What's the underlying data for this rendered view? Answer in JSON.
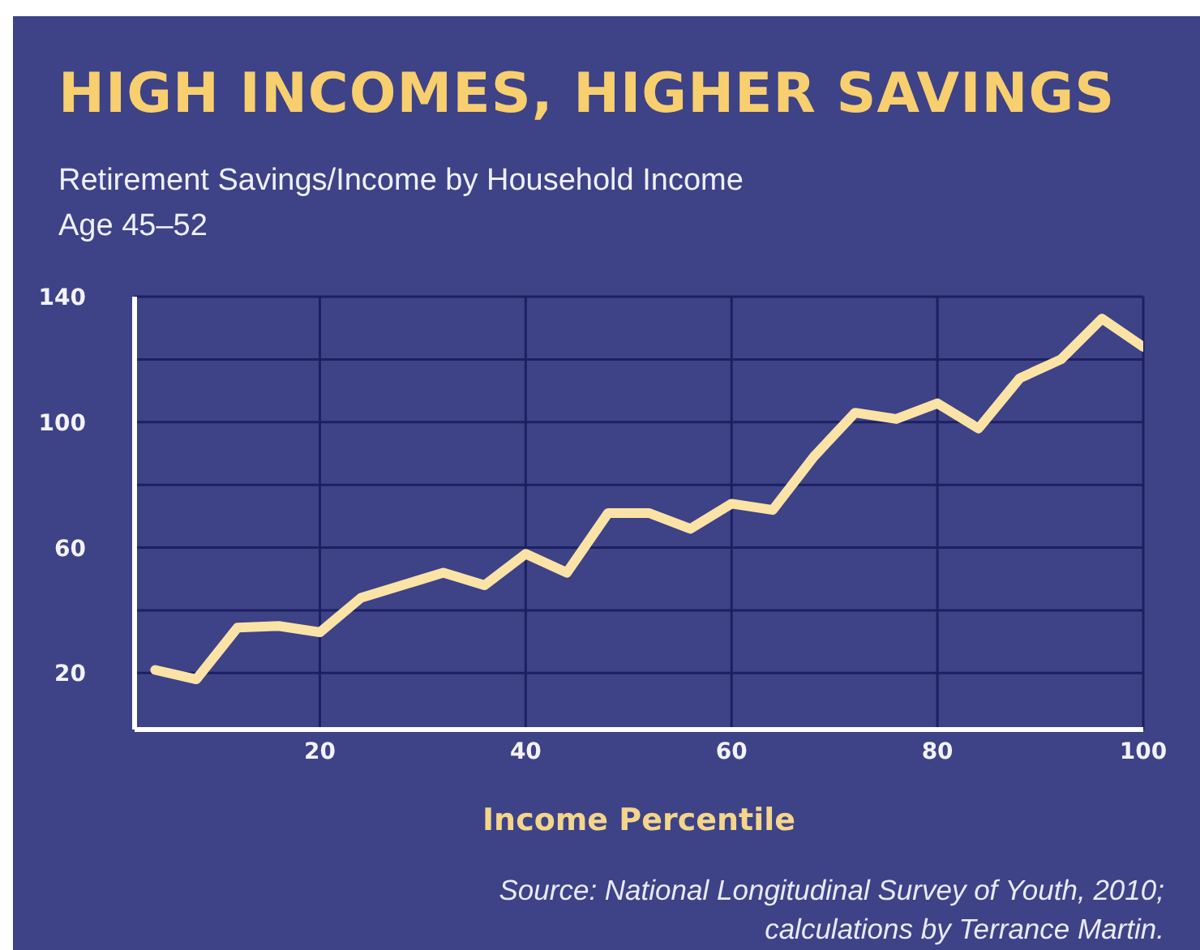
{
  "chart_data": {
    "type": "line",
    "title": "HIGH INCOMES, HIGHER SAVINGS",
    "subtitle": "Retirement Savings/Income by Household Income\nAge 45–52",
    "xlabel": "Income Percentile",
    "annotations": [
      "Source: National Longitudinal Survey of Youth, 2010; calculations by Terrance Martin."
    ],
    "x": [
      4,
      8,
      12,
      16,
      20,
      24,
      28,
      32,
      36,
      40,
      44,
      48,
      52,
      56,
      60,
      64,
      68,
      72,
      76,
      80,
      84,
      88,
      92,
      96,
      100
    ],
    "series": [
      {
        "color": "#fbe3a6",
        "values": [
          21,
          18,
          34.5,
          35,
          33,
          44,
          48,
          52,
          48,
          58,
          52,
          71,
          71,
          66,
          74,
          72,
          89,
          103,
          101,
          106,
          98,
          114,
          120,
          133,
          124
        ]
      }
    ],
    "xlim": [
      2,
      100
    ],
    "xticks": [
      20,
      40,
      60,
      80,
      100
    ],
    "ylim": [
      2,
      140
    ],
    "yticks": [
      20,
      {
        "value": 40,
        "label": null
      },
      60,
      {
        "value": 80,
        "label": null
      },
      100,
      {
        "value": 120,
        "label": null
      },
      140
    ],
    "grid": true,
    "marker": "none",
    "line_style": "solid"
  }
}
